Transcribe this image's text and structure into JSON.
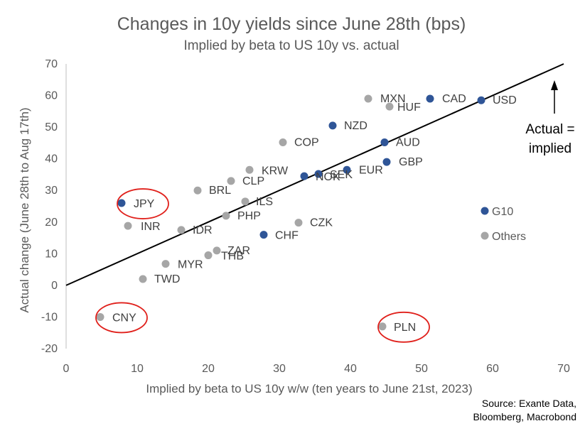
{
  "chart_data": {
    "type": "scatter",
    "title": "Changes in 10y yields since June 28th (bps)",
    "subtitle": "Implied by beta to US 10y vs. actual",
    "xlabel": "Implied by beta to US 10y w/w (ten years to June 21st, 2023)",
    "ylabel": "Actual change (June 28th to Aug 17th)",
    "xlim": [
      0,
      70
    ],
    "ylim": [
      -20,
      70
    ],
    "x_ticks": [
      0,
      10,
      20,
      30,
      40,
      50,
      60,
      70
    ],
    "y_ticks": [
      -20,
      -10,
      0,
      10,
      20,
      30,
      40,
      50,
      60,
      70
    ],
    "grid": false,
    "legend_position": "right",
    "series": [
      {
        "name": "G10",
        "color": "#2F5597",
        "points": [
          {
            "label": "USD",
            "x": 58.4,
            "y": 58.5
          },
          {
            "label": "CAD",
            "x": 51.2,
            "y": 59.0
          },
          {
            "label": "NZD",
            "x": 37.5,
            "y": 50.5
          },
          {
            "label": "AUD",
            "x": 44.8,
            "y": 45.2
          },
          {
            "label": "GBP",
            "x": 45.1,
            "y": 39.0
          },
          {
            "label": "EUR",
            "x": 39.5,
            "y": 36.5
          },
          {
            "label": "SEK",
            "x": 35.5,
            "y": 35.2
          },
          {
            "label": "NOK",
            "x": 33.5,
            "y": 34.5
          },
          {
            "label": "CHF",
            "x": 27.8,
            "y": 16.0
          },
          {
            "label": "JPY",
            "x": 7.8,
            "y": 26.0
          }
        ]
      },
      {
        "name": "Others",
        "color": "#A6A6A6",
        "points": [
          {
            "label": "MXN",
            "x": 42.5,
            "y": 59.0
          },
          {
            "label": "HUF",
            "x": 45.5,
            "y": 56.5
          },
          {
            "label": "COP",
            "x": 30.5,
            "y": 45.2
          },
          {
            "label": "KRW",
            "x": 25.8,
            "y": 36.5
          },
          {
            "label": "CLP",
            "x": 23.2,
            "y": 33.0
          },
          {
            "label": "BRL",
            "x": 18.5,
            "y": 30.0
          },
          {
            "label": "ILS",
            "x": 25.2,
            "y": 26.5
          },
          {
            "label": "PHP",
            "x": 22.5,
            "y": 22.0
          },
          {
            "label": "CZK",
            "x": 32.7,
            "y": 19.8
          },
          {
            "label": "INR",
            "x": 8.7,
            "y": 18.8
          },
          {
            "label": "IDR",
            "x": 16.2,
            "y": 17.5
          },
          {
            "label": "ZAR",
            "x": 21.2,
            "y": 11.0
          },
          {
            "label": "THB",
            "x": 20.0,
            "y": 9.5
          },
          {
            "label": "MYR",
            "x": 14.0,
            "y": 6.8
          },
          {
            "label": "TWD",
            "x": 10.8,
            "y": 2.0
          },
          {
            "label": "CNY",
            "x": 4.8,
            "y": -10.0
          },
          {
            "label": "PLN",
            "x": 44.5,
            "y": -13.0
          }
        ]
      }
    ],
    "reference_line": {
      "label": "Actual = implied",
      "from": [
        0,
        0
      ],
      "to": [
        70,
        70
      ],
      "color": "#000000"
    },
    "highlighted": [
      "JPY",
      "CNY",
      "PLN"
    ],
    "highlight_color": "#E0201B",
    "annotation": {
      "line1": "Actual =",
      "line2": "implied"
    },
    "source": {
      "line1": "Source: Exante Data,",
      "line2": "Bloomberg, Macrobond"
    }
  }
}
